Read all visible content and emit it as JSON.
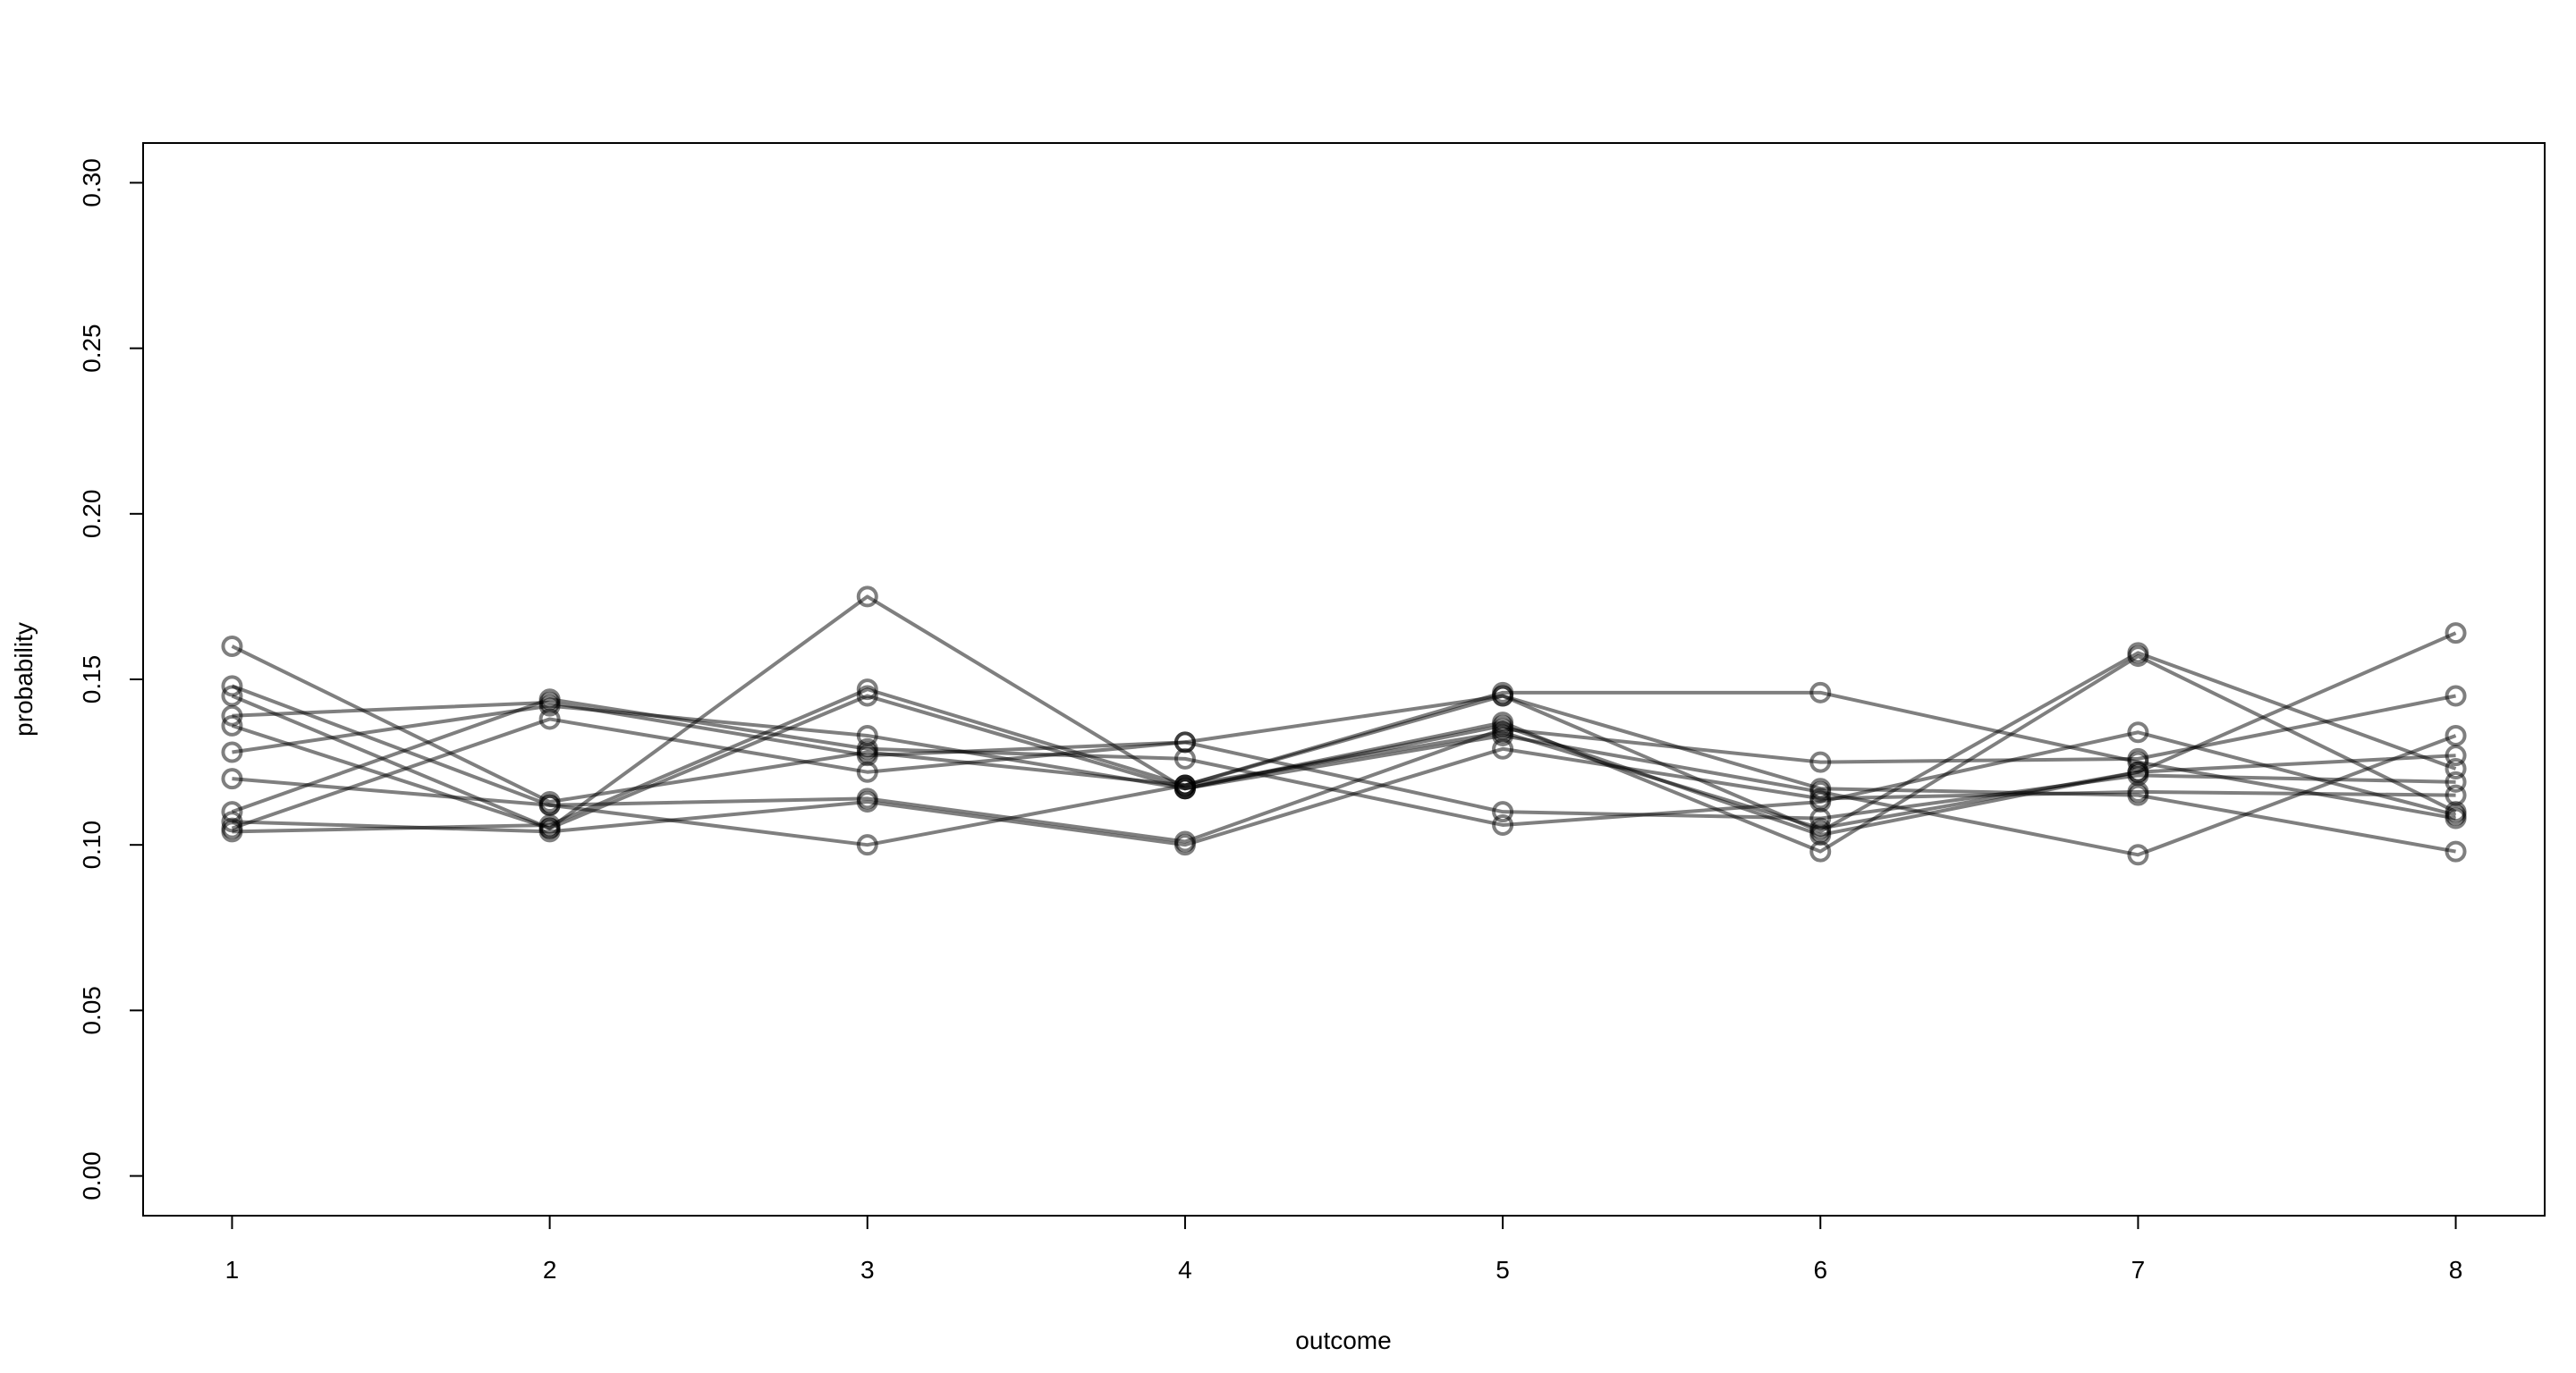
{
  "chart_data": {
    "type": "line",
    "title": "",
    "xlabel": "outcome",
    "ylabel": "probability",
    "x": [
      1,
      2,
      3,
      4,
      5,
      6,
      7,
      8
    ],
    "xlim": [
      0.72,
      8.28
    ],
    "ylim": [
      -0.012,
      0.312
    ],
    "x_ticks": [
      "1",
      "2",
      "3",
      "4",
      "5",
      "6",
      "7",
      "8"
    ],
    "y_ticks": [
      "0.00",
      "0.05",
      "0.10",
      "0.15",
      "0.20",
      "0.25",
      "0.30"
    ],
    "y_tick_values": [
      0.0,
      0.05,
      0.1,
      0.15,
      0.2,
      0.25,
      0.3
    ],
    "grid": false,
    "legend": "none",
    "marker": "open-circle",
    "line_color": "#000000",
    "line_opacity": 0.5,
    "series": [
      {
        "values": [
          0.16,
          0.113,
          0.128,
          0.118,
          0.146,
          0.146,
          0.125,
          0.108
        ]
      },
      {
        "values": [
          0.148,
          0.112,
          0.1,
          0.118,
          0.134,
          0.105,
          0.122,
          0.164
        ]
      },
      {
        "values": [
          0.145,
          0.105,
          0.145,
          0.117,
          0.137,
          0.098,
          0.157,
          0.11
        ]
      },
      {
        "values": [
          0.139,
          0.143,
          0.127,
          0.131,
          0.11,
          0.108,
          0.121,
          0.119
        ]
      },
      {
        "values": [
          0.136,
          0.105,
          0.175,
          0.117,
          0.133,
          0.116,
          0.097,
          0.133
        ]
      },
      {
        "values": [
          0.128,
          0.142,
          0.133,
          0.117,
          0.136,
          0.103,
          0.122,
          0.127
        ]
      },
      {
        "values": [
          0.12,
          0.112,
          0.114,
          0.101,
          0.135,
          0.125,
          0.126,
          0.145
        ]
      },
      {
        "values": [
          0.11,
          0.144,
          0.129,
          0.126,
          0.106,
          0.113,
          0.134,
          0.109
        ]
      },
      {
        "values": [
          0.107,
          0.104,
          0.113,
          0.1,
          0.129,
          0.114,
          0.116,
          0.115
        ]
      },
      {
        "values": [
          0.105,
          0.138,
          0.122,
          0.131,
          0.145,
          0.117,
          0.115,
          0.098
        ]
      },
      {
        "values": [
          0.104,
          0.106,
          0.147,
          0.118,
          0.145,
          0.104,
          0.158,
          0.123
        ]
      }
    ]
  }
}
